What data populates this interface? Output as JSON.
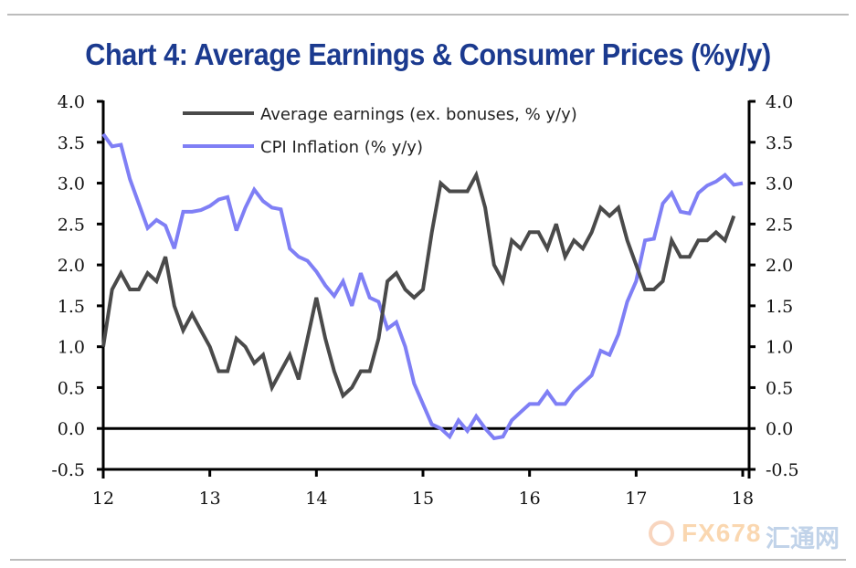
{
  "chart_data": {
    "type": "line",
    "title": "Chart 4: Average Earnings & Consumer Prices (%y/y)",
    "xlabel": "",
    "ylabel": "",
    "x_ticks": [
      "12",
      "13",
      "14",
      "15",
      "16",
      "17",
      "18"
    ],
    "x_range": [
      2012.0,
      2018.0
    ],
    "y_ticks_left": [
      "4.0",
      "3.5",
      "3.0",
      "2.5",
      "2.0",
      "1.5",
      "1.0",
      "0.5",
      "0.0",
      "-0.5"
    ],
    "y_ticks_right": [
      "4.0",
      "3.5",
      "3.0",
      "2.5",
      "2.0",
      "1.5",
      "1.0",
      "0.5",
      "0.0",
      "-0.5"
    ],
    "ylim": [
      -0.5,
      4.0
    ],
    "y_tick_values": [
      4.0,
      3.5,
      3.0,
      2.5,
      2.0,
      1.5,
      1.0,
      0.5,
      0.0,
      -0.5
    ],
    "x_tick_values": [
      12,
      13,
      14,
      15,
      16,
      17,
      18
    ],
    "grid": false,
    "zero_line": true,
    "legend_position": "top-center",
    "x_start": 2012.0,
    "x_step_months": 1,
    "series": [
      {
        "name": "Average earnings (ex. bonuses, % y/y)",
        "color": "#4a4a4a",
        "values": [
          1.0,
          1.7,
          1.9,
          1.7,
          1.7,
          1.9,
          1.8,
          2.1,
          1.5,
          1.2,
          1.4,
          1.2,
          1.0,
          0.7,
          0.7,
          1.1,
          1.0,
          0.8,
          0.9,
          0.5,
          0.7,
          0.9,
          0.6,
          1.1,
          1.6,
          1.1,
          0.7,
          0.4,
          0.5,
          0.7,
          0.7,
          1.1,
          1.8,
          1.9,
          1.7,
          1.6,
          1.7,
          2.4,
          3.0,
          2.9,
          2.9,
          2.9,
          3.1,
          2.7,
          2.0,
          1.8,
          2.3,
          2.2,
          2.4,
          2.4,
          2.2,
          2.5,
          2.1,
          2.3,
          2.2,
          2.4,
          2.7,
          2.6,
          2.7,
          2.3,
          2.0,
          1.7,
          1.7,
          1.8,
          2.3,
          2.1,
          2.1,
          2.3,
          2.3,
          2.4,
          2.3,
          2.6
        ]
      },
      {
        "name": "CPI Inflation (% y/y)",
        "color": "#7f7ff5",
        "values": [
          3.6,
          3.45,
          3.47,
          3.05,
          2.75,
          2.45,
          2.55,
          2.48,
          2.2,
          2.65,
          2.65,
          2.67,
          2.72,
          2.8,
          2.83,
          2.42,
          2.7,
          2.92,
          2.78,
          2.7,
          2.68,
          2.2,
          2.1,
          2.05,
          1.92,
          1.75,
          1.62,
          1.8,
          1.5,
          1.9,
          1.6,
          1.55,
          1.22,
          1.3,
          1.0,
          0.55,
          0.3,
          0.05,
          0.0,
          -0.1,
          0.1,
          -0.03,
          0.15,
          0.0,
          -0.12,
          -0.1,
          0.1,
          0.2,
          0.3,
          0.3,
          0.45,
          0.3,
          0.3,
          0.45,
          0.55,
          0.65,
          0.95,
          0.9,
          1.15,
          1.55,
          1.8,
          2.3,
          2.32,
          2.75,
          2.88,
          2.65,
          2.63,
          2.88,
          2.97,
          3.02,
          3.1,
          2.98,
          3.0
        ]
      }
    ]
  },
  "watermark": {
    "brand": "FX678",
    "cn": "汇通网"
  }
}
